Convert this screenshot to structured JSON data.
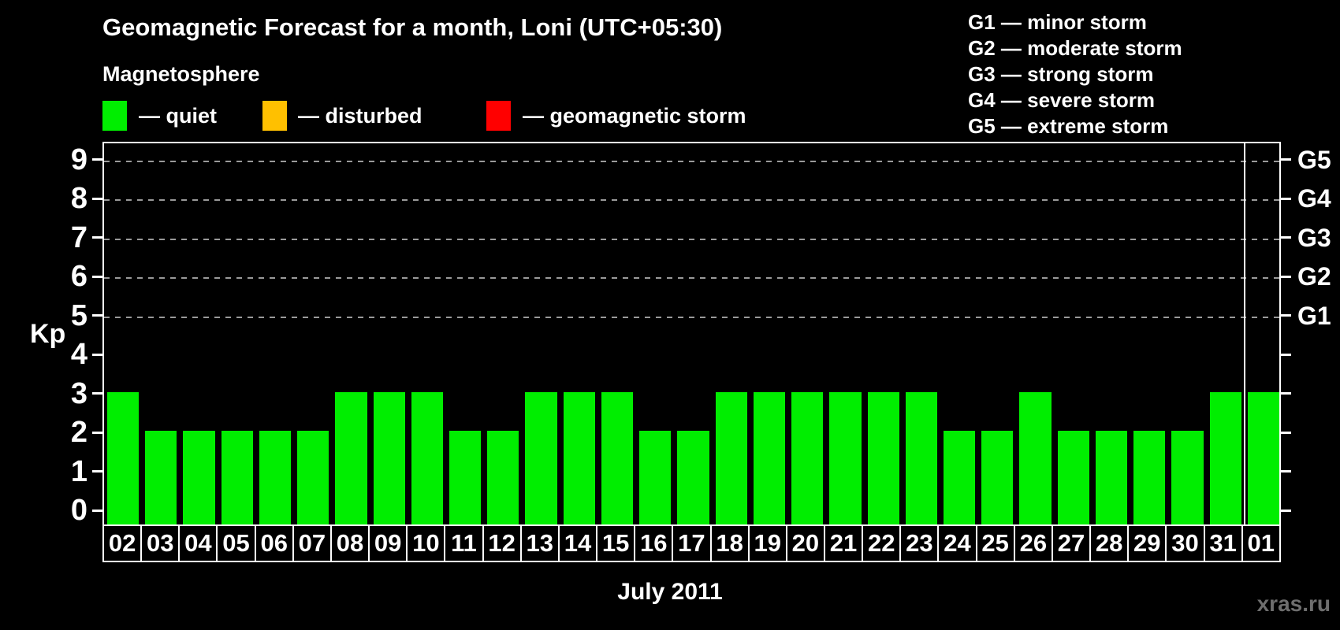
{
  "title": "Geomagnetic Forecast for a month, Loni (UTC+05:30)",
  "magnetosphere": {
    "heading": "Magnetosphere",
    "items": [
      {
        "label": "— quiet",
        "color": "#00ee00"
      },
      {
        "label": "— disturbed",
        "color": "#ffc000"
      },
      {
        "label": "— geomagnetic storm",
        "color": "#ff0000"
      }
    ]
  },
  "storm_scale_legend": [
    "G1 — minor storm",
    "G2 — moderate storm",
    "G3 — strong storm",
    "G4 — severe storm",
    "G5 — extreme storm"
  ],
  "chart_data": {
    "type": "bar",
    "title": "Geomagnetic Forecast for a month, Loni (UTC+05:30)",
    "categories": [
      "02",
      "03",
      "04",
      "05",
      "06",
      "07",
      "08",
      "09",
      "10",
      "11",
      "12",
      "13",
      "14",
      "15",
      "16",
      "17",
      "18",
      "19",
      "20",
      "21",
      "22",
      "23",
      "24",
      "25",
      "26",
      "27",
      "28",
      "29",
      "30",
      "31",
      "01"
    ],
    "values": [
      3,
      2,
      2,
      2,
      2,
      2,
      3,
      3,
      3,
      2,
      2,
      3,
      3,
      3,
      2,
      2,
      3,
      3,
      3,
      3,
      3,
      3,
      2,
      2,
      3,
      2,
      2,
      2,
      2,
      3,
      3
    ],
    "xlabel": "July 2011",
    "ylabel": "Kp",
    "ylim": [
      -0.5,
      9.5
    ],
    "yticks": [
      0,
      1,
      2,
      3,
      4,
      5,
      6,
      7,
      8,
      9
    ],
    "gridlines_at": [
      5,
      6,
      7,
      8,
      9
    ],
    "right_axis_labels": [
      {
        "kp": 5,
        "label": "G1"
      },
      {
        "kp": 6,
        "label": "G2"
      },
      {
        "kp": 7,
        "label": "G3"
      },
      {
        "kp": 8,
        "label": "G4"
      },
      {
        "kp": 9,
        "label": "G5"
      }
    ],
    "bar_color": "#00ee00",
    "month_separator_after": "31",
    "legend_position": "top-left",
    "grid": "horizontal dashed lines at storm levels only"
  },
  "footer": {
    "xlabel": "July 2011",
    "watermark": "xras.ru"
  }
}
